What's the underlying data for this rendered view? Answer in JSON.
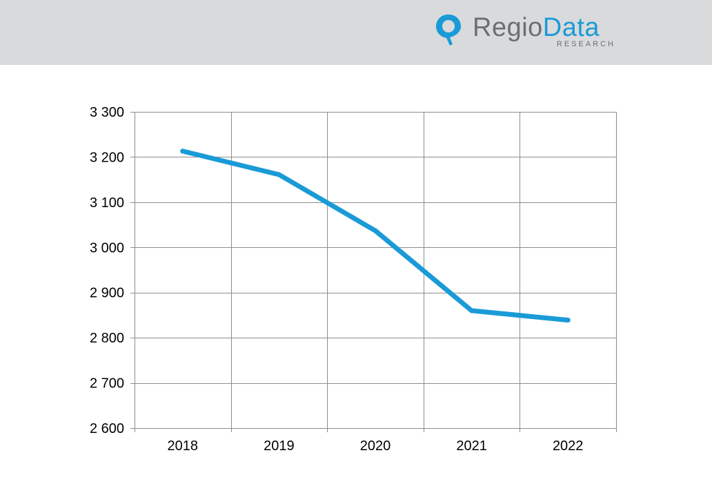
{
  "logo": {
    "name_part1": "Regio",
    "name_part2": "Data",
    "subtitle": "RESEARCH",
    "brand_gray": "#6b6e73",
    "brand_blue": "#1a9bd7",
    "icon": "map-pin-icon"
  },
  "colors": {
    "header_bg": "#d9dadc",
    "line": "#1a9bd7",
    "grid": "#8c8c8c"
  },
  "chart_data": {
    "type": "line",
    "title": "",
    "xlabel": "",
    "ylabel": "",
    "categories": [
      "2018",
      "2019",
      "2020",
      "2021",
      "2022"
    ],
    "values": [
      3213,
      3161,
      3037,
      2860,
      2839
    ],
    "ylim": [
      2600,
      3300
    ],
    "yticks": [
      2600,
      2700,
      2800,
      2900,
      3000,
      3100,
      3200,
      3300
    ],
    "ytick_labels": [
      "2 600",
      "2 700",
      "2 800",
      "2 900",
      "3 000",
      "3 100",
      "3 200",
      "3 300"
    ],
    "grid": true,
    "legend": "none"
  }
}
